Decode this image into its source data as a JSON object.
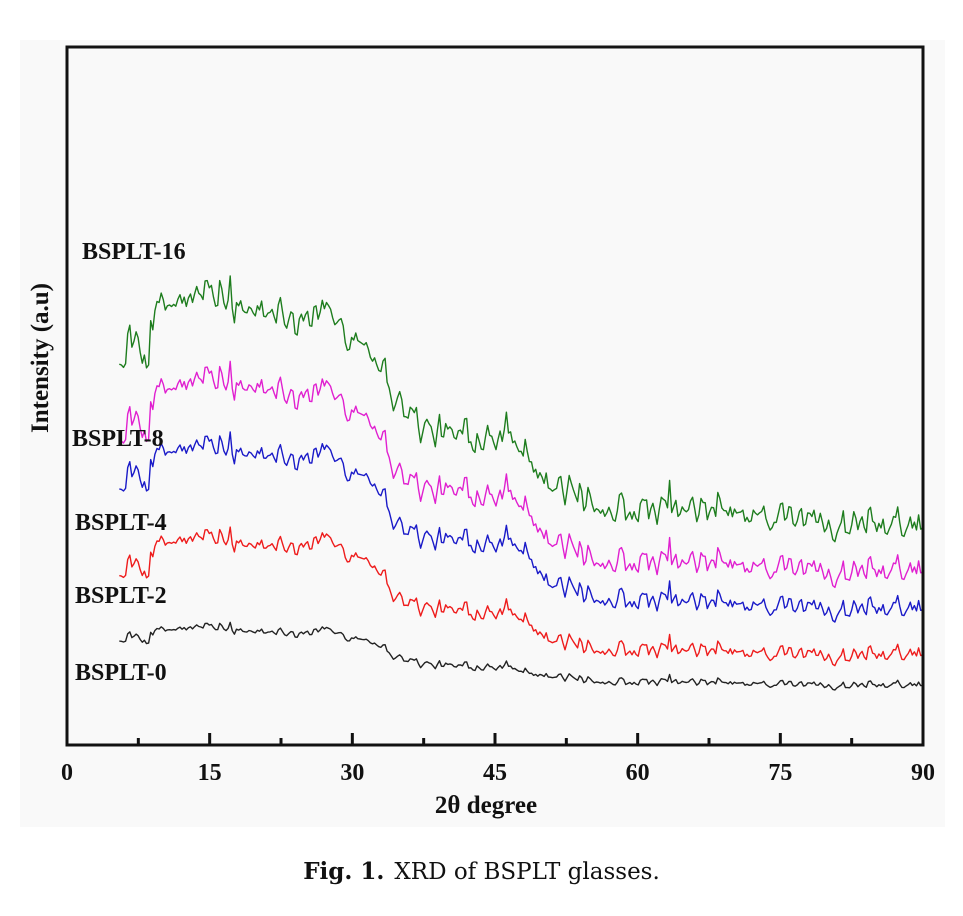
{
  "caption": {
    "number": "Fig. 1.",
    "text": "XRD of BSPLT glasses."
  },
  "chart_data": {
    "type": "line",
    "title": "",
    "xlabel": "2θ degree",
    "ylabel": "Intensity (a.u)",
    "xlim": [
      0,
      90
    ],
    "ylim": [
      0,
      100
    ],
    "x_major_ticks": [
      0,
      15,
      30,
      45,
      60,
      75,
      90
    ],
    "x_tick_labels": [
      "0",
      "15",
      "30",
      "45",
      "60",
      "75",
      "90"
    ],
    "x_minor_ticks": [
      7.5,
      22.5,
      37.5,
      52.5,
      67.5,
      82.5
    ],
    "y_ticks_shown": false,
    "grid": false,
    "legend": "inline labels at left of each curve",
    "x_start": 5.5,
    "series": [
      {
        "name": "BSPLT-16",
        "color": "#1e7d1e",
        "noise": 3.2,
        "envelope": [
          [
            5.5,
            55
          ],
          [
            8,
            57
          ],
          [
            10,
            63
          ],
          [
            15,
            64
          ],
          [
            20,
            62
          ],
          [
            25,
            61
          ],
          [
            27,
            62
          ],
          [
            30,
            59
          ],
          [
            32,
            57
          ],
          [
            35,
            49
          ],
          [
            38,
            45
          ],
          [
            42,
            44
          ],
          [
            45,
            45
          ],
          [
            48,
            43
          ],
          [
            51,
            37
          ],
          [
            55,
            35
          ],
          [
            58,
            34
          ],
          [
            62,
            33.5
          ],
          [
            70,
            33
          ],
          [
            80,
            32
          ],
          [
            90,
            30.5
          ]
        ]
      },
      {
        "name": "BSPLT-8",
        "color": "#e020d0",
        "noise": 2.7,
        "envelope": [
          [
            5.5,
            44
          ],
          [
            8,
            46
          ],
          [
            10,
            51
          ],
          [
            15,
            52
          ],
          [
            20,
            51
          ],
          [
            25,
            50
          ],
          [
            27,
            51
          ],
          [
            30,
            48.5
          ],
          [
            32,
            47
          ],
          [
            35,
            39
          ],
          [
            38,
            36.5
          ],
          [
            42,
            36
          ],
          [
            45,
            36.5
          ],
          [
            48,
            35
          ],
          [
            51,
            29
          ],
          [
            55,
            27
          ],
          [
            58,
            26.5
          ],
          [
            62,
            26
          ],
          [
            70,
            25.6
          ],
          [
            80,
            25
          ],
          [
            90,
            24.3
          ]
        ]
      },
      {
        "name": "BSPLT-4",
        "color": "#1a1ac8",
        "noise": 2.2,
        "envelope": [
          [
            5.5,
            37
          ],
          [
            8,
            38.5
          ],
          [
            10,
            42
          ],
          [
            15,
            42.5
          ],
          [
            20,
            41.5
          ],
          [
            25,
            41
          ],
          [
            27,
            42
          ],
          [
            30,
            39.5
          ],
          [
            32,
            38.5
          ],
          [
            35,
            31.5
          ],
          [
            38,
            29.5
          ],
          [
            42,
            29
          ],
          [
            45,
            29.5
          ],
          [
            48,
            28.5
          ],
          [
            51,
            23
          ],
          [
            55,
            21.5
          ],
          [
            58,
            21
          ],
          [
            62,
            20.5
          ],
          [
            70,
            20
          ],
          [
            80,
            19.6
          ],
          [
            90,
            19
          ]
        ]
      },
      {
        "name": "BSPLT-2",
        "color": "#ee1c1c",
        "noise": 1.7,
        "envelope": [
          [
            5.5,
            24.5
          ],
          [
            8,
            25.5
          ],
          [
            10,
            29
          ],
          [
            15,
            29.5
          ],
          [
            20,
            28.5
          ],
          [
            25,
            28.5
          ],
          [
            27,
            29.5
          ],
          [
            30,
            27.5
          ],
          [
            32,
            26.5
          ],
          [
            35,
            21
          ],
          [
            38,
            19.5
          ],
          [
            42,
            19
          ],
          [
            45,
            19.5
          ],
          [
            48,
            18.5
          ],
          [
            51,
            15
          ],
          [
            55,
            14
          ],
          [
            58,
            13.8
          ],
          [
            62,
            13.5
          ],
          [
            70,
            13.2
          ],
          [
            80,
            12.9
          ],
          [
            90,
            12.6
          ]
        ]
      },
      {
        "name": "BSPLT-0",
        "color": "#222222",
        "noise": 0.8,
        "envelope": [
          [
            5.5,
            15
          ],
          [
            8,
            15.3
          ],
          [
            10,
            16.5
          ],
          [
            15,
            16.8
          ],
          [
            20,
            16.2
          ],
          [
            25,
            16
          ],
          [
            27,
            16.5
          ],
          [
            30,
            15.5
          ],
          [
            32,
            15
          ],
          [
            35,
            12.5
          ],
          [
            38,
            11.5
          ],
          [
            42,
            11.2
          ],
          [
            45,
            11.4
          ],
          [
            48,
            10.8
          ],
          [
            51,
            9.8
          ],
          [
            55,
            9.3
          ],
          [
            58,
            9.1
          ],
          [
            62,
            9
          ],
          [
            70,
            8.8
          ],
          [
            80,
            8.6
          ],
          [
            90,
            8.4
          ]
        ]
      }
    ]
  }
}
